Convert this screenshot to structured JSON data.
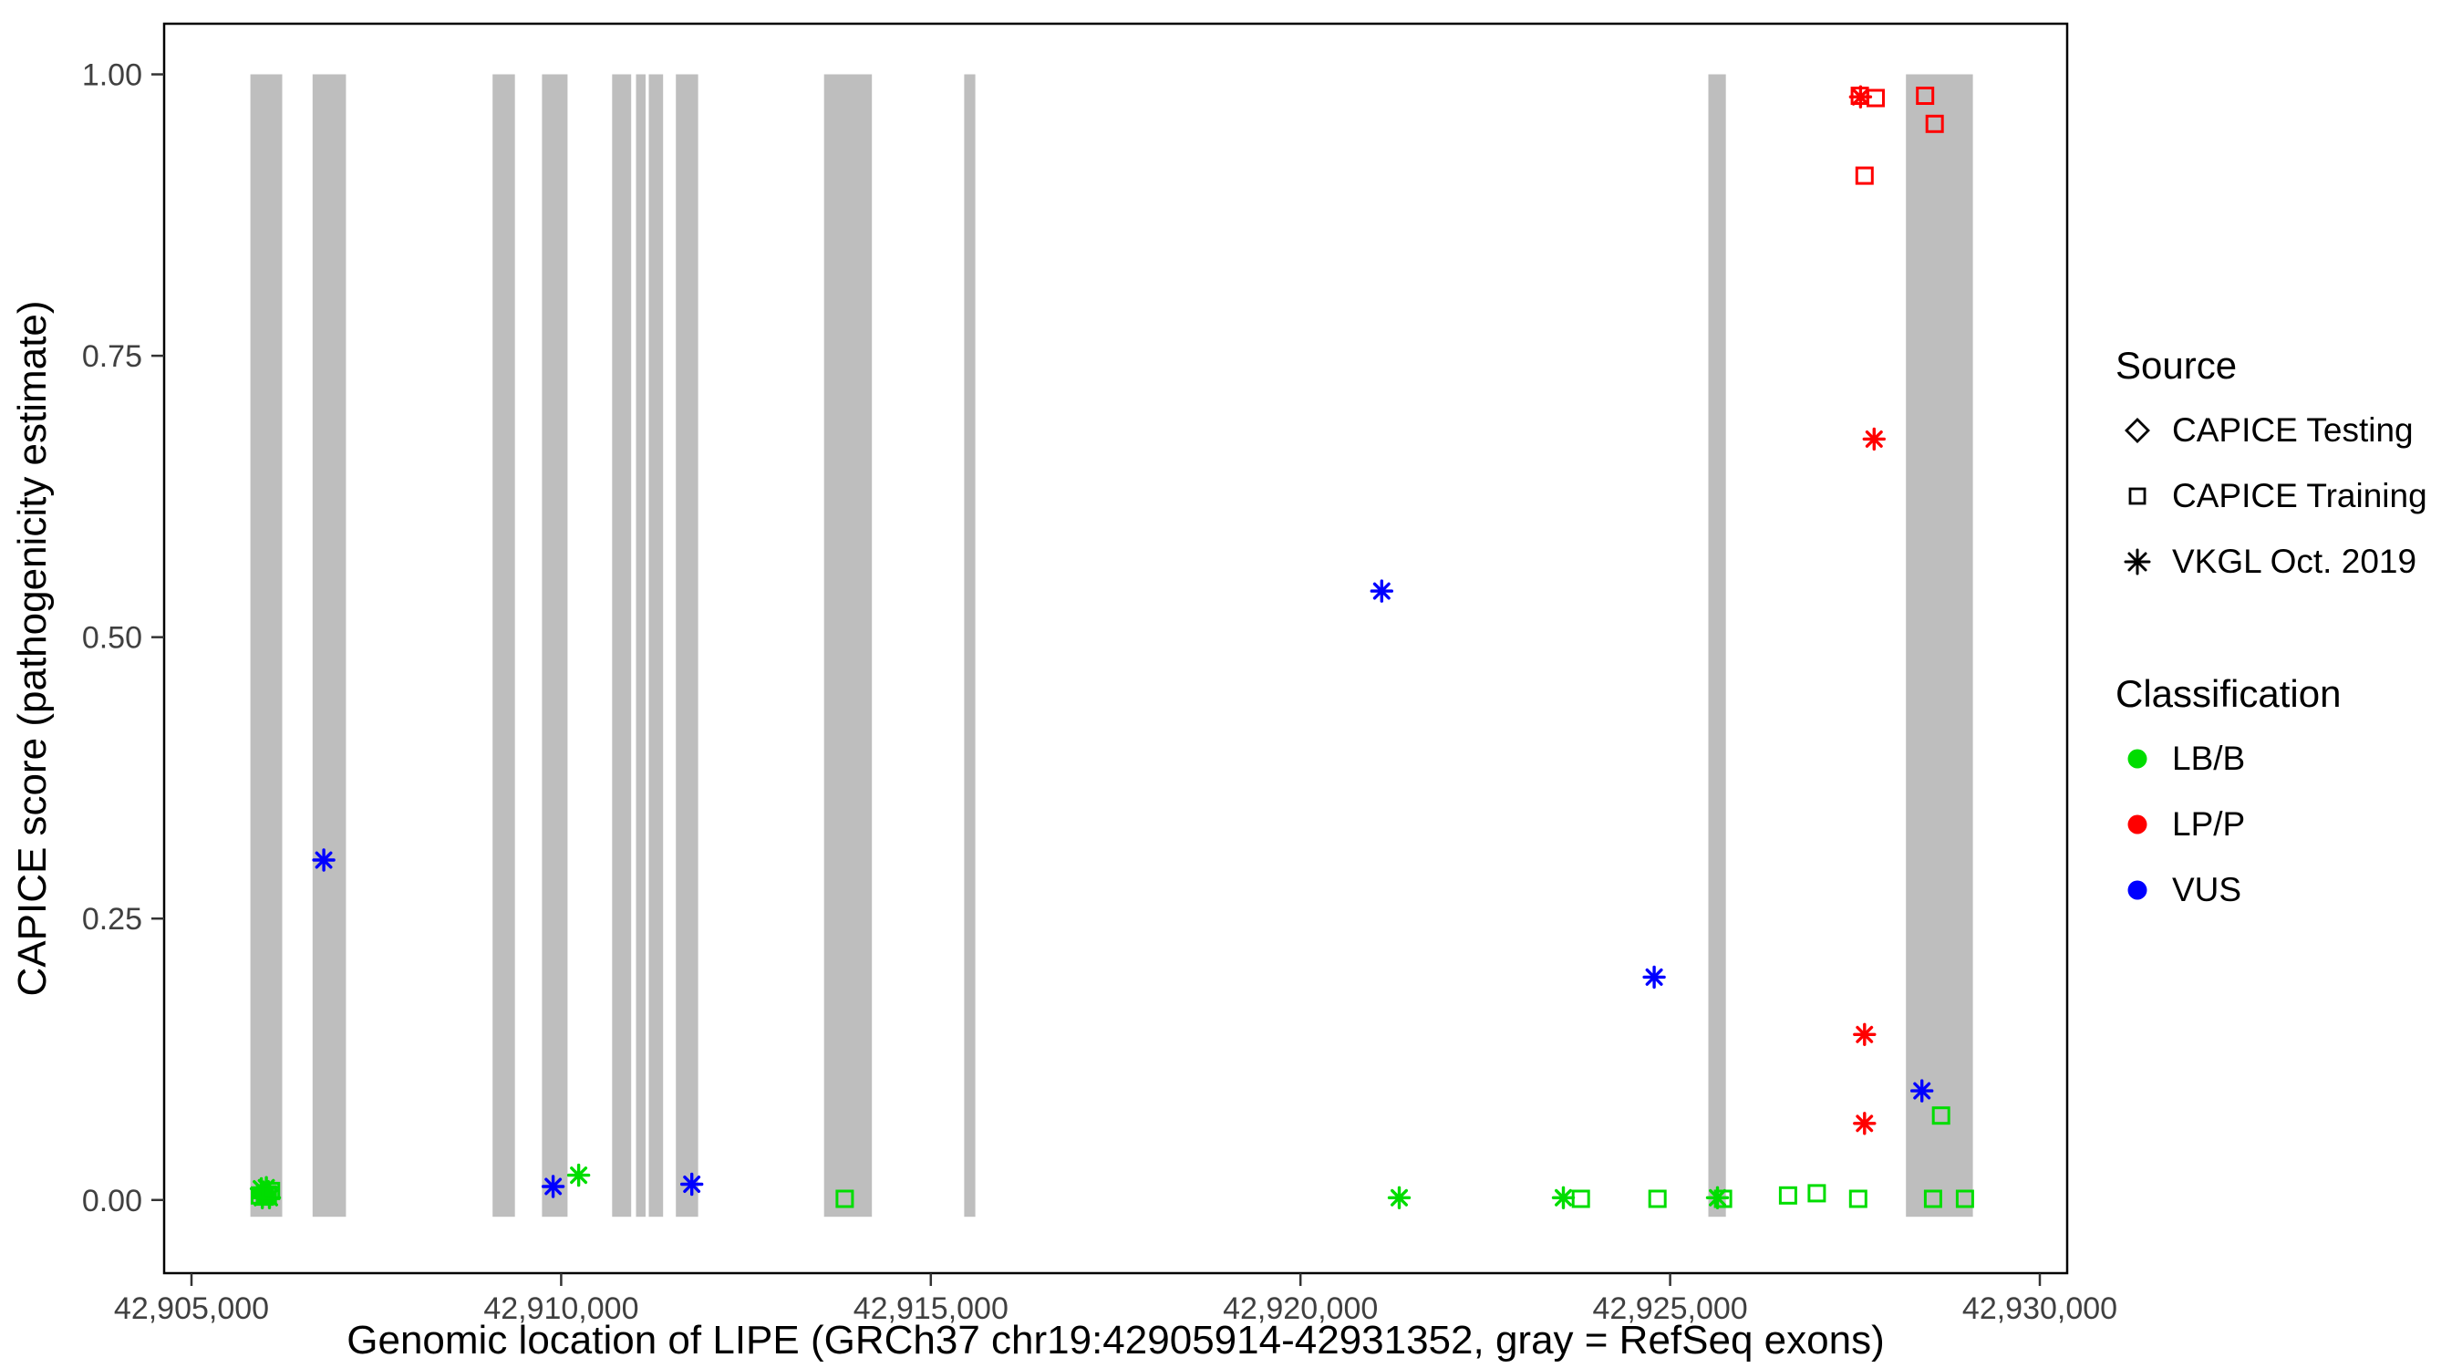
{
  "figure": {
    "background": "#FFFFFF"
  },
  "legend": {
    "source": {
      "title": "Source",
      "items": [
        {
          "name": "capice-testing",
          "label": "CAPICE Testing",
          "marker": "diamond"
        },
        {
          "name": "capice-training",
          "label": "CAPICE Training",
          "marker": "square"
        },
        {
          "name": "vkgl-oct-2019",
          "label": "VKGL Oct. 2019",
          "marker": "asterisk"
        }
      ]
    },
    "classification": {
      "title": "Classification",
      "items": [
        {
          "name": "lb-b",
          "label": "LB/B",
          "marker": "circle",
          "color": "#00DD00"
        },
        {
          "name": "lp-p",
          "label": "LP/P",
          "marker": "circle",
          "color": "#FF0000"
        },
        {
          "name": "vus",
          "label": "VUS",
          "marker": "circle",
          "color": "#0000FF"
        }
      ]
    }
  },
  "chart_data": {
    "type": "scatter",
    "title": "",
    "xlabel": "Genomic location of LIPE (GRCh37 chr19:42905914-42931352, gray = RefSeq exons)",
    "ylabel": "CAPICE score (pathogenicity estimate)",
    "xlim": [
      42904630,
      42930370
    ],
    "ylim": [
      -0.065,
      1.045
    ],
    "grid": false,
    "legend_position": "right",
    "x_ticks": [
      {
        "value": 42905000,
        "label": "42,905,000"
      },
      {
        "value": 42910000,
        "label": "42,910,000"
      },
      {
        "value": 42915000,
        "label": "42,915,000"
      },
      {
        "value": 42920000,
        "label": "42,920,000"
      },
      {
        "value": 42925000,
        "label": "42,925,000"
      },
      {
        "value": 42930000,
        "label": "42,930,000"
      }
    ],
    "y_ticks": [
      {
        "value": 0.0,
        "label": "0.00"
      },
      {
        "value": 0.25,
        "label": "0.25"
      },
      {
        "value": 0.5,
        "label": "0.50"
      },
      {
        "value": 0.75,
        "label": "0.75"
      },
      {
        "value": 1.0,
        "label": "1.00"
      }
    ],
    "exon_color": "#BEBEBE",
    "exon_y_range": [
      -0.015,
      1.0
    ],
    "exons": [
      [
        42905797,
        42906228
      ],
      [
        42906638,
        42907090
      ],
      [
        42909073,
        42909375
      ],
      [
        42909741,
        42910086
      ],
      [
        42910690,
        42910948
      ],
      [
        42911013,
        42911142
      ],
      [
        42911185,
        42911379
      ],
      [
        42911552,
        42911853
      ],
      [
        42913556,
        42914203
      ],
      [
        42915452,
        42915603
      ],
      [
        42925517,
        42925754
      ],
      [
        42928190,
        42929095
      ]
    ],
    "colors": {
      "LB/B": "#00DD00",
      "LP/P": "#FF0000",
      "VUS": "#0000FF"
    },
    "marker_by_source": {
      "CAPICE Testing": "diamond",
      "CAPICE Training": "square",
      "VKGL Oct. 2019": "asterisk"
    },
    "points": [
      {
        "x": 42905925,
        "y": 0.004,
        "source": "CAPICE Training",
        "classification": "LB/B"
      },
      {
        "x": 42905945,
        "y": 0.01,
        "source": "VKGL Oct. 2019",
        "classification": "LB/B"
      },
      {
        "x": 42905958,
        "y": 0.002,
        "source": "VKGL Oct. 2019",
        "classification": "LB/B"
      },
      {
        "x": 42905975,
        "y": 0.007,
        "source": "CAPICE Testing",
        "classification": "LB/B"
      },
      {
        "x": 42905993,
        "y": 0.003,
        "source": "CAPICE Training",
        "classification": "LB/B"
      },
      {
        "x": 42906012,
        "y": 0.011,
        "source": "VKGL Oct. 2019",
        "classification": "LB/B"
      },
      {
        "x": 42906032,
        "y": 0.005,
        "source": "CAPICE Training",
        "classification": "LB/B"
      },
      {
        "x": 42906055,
        "y": 0.002,
        "source": "VKGL Oct. 2019",
        "classification": "LB/B"
      },
      {
        "x": 42906075,
        "y": 0.008,
        "source": "CAPICE Training",
        "classification": "LB/B"
      },
      {
        "x": 42906789,
        "y": 0.302,
        "source": "VKGL Oct. 2019",
        "classification": "VUS"
      },
      {
        "x": 42909892,
        "y": 0.012,
        "source": "VKGL Oct. 2019",
        "classification": "VUS"
      },
      {
        "x": 42910237,
        "y": 0.022,
        "source": "VKGL Oct. 2019",
        "classification": "LB/B"
      },
      {
        "x": 42911767,
        "y": 0.014,
        "source": "VKGL Oct. 2019",
        "classification": "VUS"
      },
      {
        "x": 42913836,
        "y": 0.001,
        "source": "CAPICE Training",
        "classification": "LB/B"
      },
      {
        "x": 42921099,
        "y": 0.541,
        "source": "VKGL Oct. 2019",
        "classification": "VUS"
      },
      {
        "x": 42921336,
        "y": 0.002,
        "source": "VKGL Oct. 2019",
        "classification": "LB/B"
      },
      {
        "x": 42923556,
        "y": 0.002,
        "source": "VKGL Oct. 2019",
        "classification": "LB/B"
      },
      {
        "x": 42923793,
        "y": 0.001,
        "source": "CAPICE Training",
        "classification": "LB/B"
      },
      {
        "x": 42924784,
        "y": 0.198,
        "source": "VKGL Oct. 2019",
        "classification": "VUS"
      },
      {
        "x": 42924828,
        "y": 0.001,
        "source": "CAPICE Training",
        "classification": "LB/B"
      },
      {
        "x": 42925640,
        "y": 0.002,
        "source": "VKGL Oct. 2019",
        "classification": "LB/B"
      },
      {
        "x": 42925715,
        "y": 0.001,
        "source": "CAPICE Training",
        "classification": "LB/B"
      },
      {
        "x": 42926595,
        "y": 0.004,
        "source": "CAPICE Training",
        "classification": "LB/B"
      },
      {
        "x": 42926983,
        "y": 0.006,
        "source": "CAPICE Training",
        "classification": "LB/B"
      },
      {
        "x": 42927543,
        "y": 0.001,
        "source": "CAPICE Training",
        "classification": "LB/B"
      },
      {
        "x": 42927565,
        "y": 0.981,
        "source": "CAPICE Training",
        "classification": "LP/P"
      },
      {
        "x": 42927575,
        "y": 0.98,
        "source": "VKGL Oct. 2019",
        "classification": "LP/P"
      },
      {
        "x": 42927780,
        "y": 0.979,
        "source": "CAPICE Training",
        "classification": "LP/P"
      },
      {
        "x": 42927629,
        "y": 0.91,
        "source": "CAPICE Training",
        "classification": "LP/P"
      },
      {
        "x": 42927759,
        "y": 0.676,
        "source": "VKGL Oct. 2019",
        "classification": "LP/P"
      },
      {
        "x": 42927629,
        "y": 0.147,
        "source": "VKGL Oct. 2019",
        "classification": "LP/P"
      },
      {
        "x": 42927629,
        "y": 0.068,
        "source": "VKGL Oct. 2019",
        "classification": "LP/P"
      },
      {
        "x": 42928405,
        "y": 0.097,
        "source": "VKGL Oct. 2019",
        "classification": "VUS"
      },
      {
        "x": 42928448,
        "y": 0.981,
        "source": "CAPICE Training",
        "classification": "LP/P"
      },
      {
        "x": 42928578,
        "y": 0.956,
        "source": "CAPICE Training",
        "classification": "LP/P"
      },
      {
        "x": 42928664,
        "y": 0.075,
        "source": "CAPICE Training",
        "classification": "LB/B"
      },
      {
        "x": 42928556,
        "y": 0.001,
        "source": "CAPICE Training",
        "classification": "LB/B"
      },
      {
        "x": 42928987,
        "y": 0.001,
        "source": "CAPICE Training",
        "classification": "LB/B"
      }
    ]
  }
}
